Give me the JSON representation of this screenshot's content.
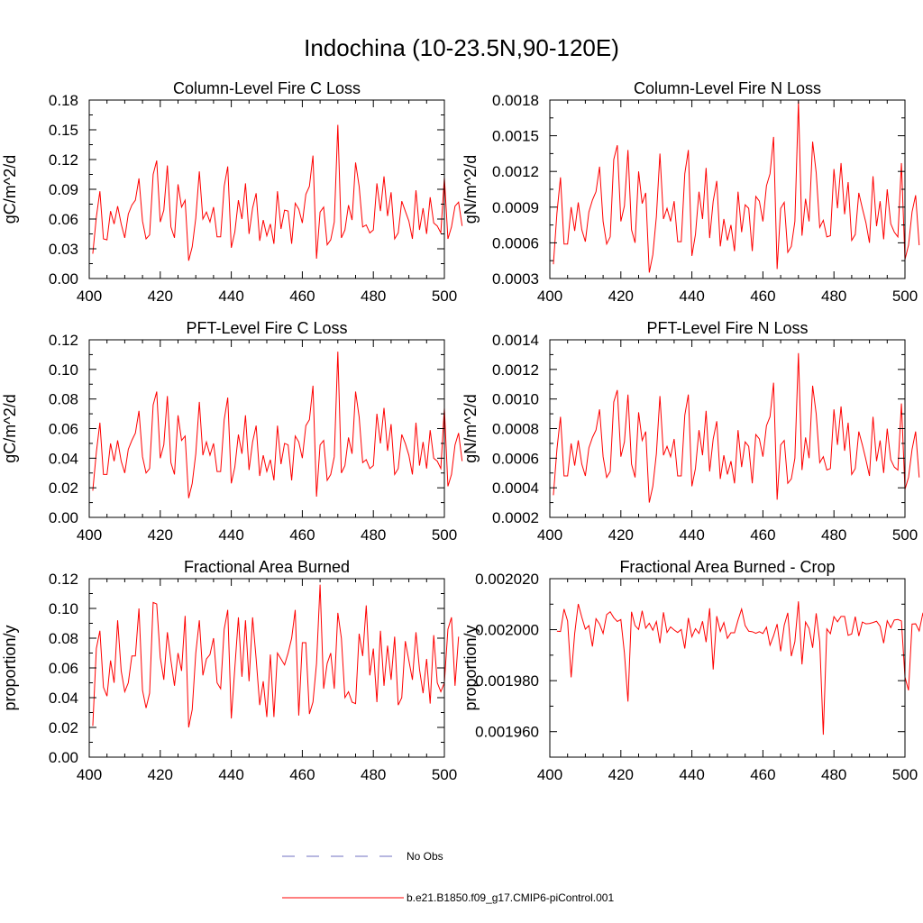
{
  "figure": {
    "title": "Indochina (10-23.5N,90-120E)"
  },
  "legend": {
    "items": [
      {
        "label": "No Obs",
        "color": "#6f6fc0",
        "style": "dashed"
      },
      {
        "label": "b.e21.B1850.f09_g17.CMIP6-piControl.001",
        "color": "#ff0000",
        "style": "solid"
      }
    ]
  },
  "chart_data": [
    {
      "type": "line",
      "title": "Column-Level Fire C Loss",
      "ylabel": "gC/m^2/d",
      "xlabel": "",
      "xlim": [
        400,
        500
      ],
      "ylim": [
        0.0,
        0.18
      ],
      "xticks": [
        400,
        420,
        440,
        460,
        480,
        500
      ],
      "xtick_labels": [
        "400",
        "420",
        "440",
        "460",
        "480",
        "500"
      ],
      "yticks": [
        0.0,
        0.03,
        0.06,
        0.09,
        0.12,
        0.15,
        0.18
      ],
      "ytick_labels": [
        "0.00",
        "0.03",
        "0.06",
        "0.09",
        "0.12",
        "0.15",
        "0.18"
      ],
      "series": [
        {
          "name": "b.e21.B1850.f09_g17.CMIP6-piControl.001",
          "color": "#ff0000",
          "x_start": 401,
          "values": [
            0.025,
            0.062,
            0.088,
            0.04,
            0.039,
            0.068,
            0.055,
            0.073,
            0.055,
            0.041,
            0.065,
            0.074,
            0.079,
            0.101,
            0.058,
            0.04,
            0.044,
            0.105,
            0.119,
            0.057,
            0.069,
            0.114,
            0.052,
            0.041,
            0.095,
            0.072,
            0.079,
            0.018,
            0.032,
            0.061,
            0.108,
            0.06,
            0.067,
            0.057,
            0.072,
            0.042,
            0.042,
            0.093,
            0.113,
            0.031,
            0.047,
            0.079,
            0.06,
            0.096,
            0.045,
            0.071,
            0.086,
            0.038,
            0.059,
            0.043,
            0.055,
            0.035,
            0.088,
            0.05,
            0.069,
            0.068,
            0.035,
            0.076,
            0.07,
            0.056,
            0.085,
            0.093,
            0.124,
            0.02,
            0.067,
            0.072,
            0.034,
            0.039,
            0.057,
            0.155,
            0.041,
            0.049,
            0.074,
            0.059,
            0.117,
            0.093,
            0.052,
            0.054,
            0.046,
            0.049,
            0.096,
            0.068,
            0.103,
            0.063,
            0.087,
            0.04,
            0.046,
            0.078,
            0.068,
            0.058,
            0.04,
            0.089,
            0.049,
            0.071,
            0.045,
            0.082,
            0.056,
            0.053,
            0.046,
            0.102,
            0.04,
            0.052,
            0.073,
            0.077,
            0.053
          ]
        }
      ]
    },
    {
      "type": "line",
      "title": "Column-Level Fire N Loss",
      "ylabel": "gN/m^2/d",
      "xlabel": "",
      "xlim": [
        400,
        500
      ],
      "ylim": [
        0.0003,
        0.0018
      ],
      "xticks": [
        400,
        420,
        440,
        460,
        480,
        500
      ],
      "xtick_labels": [
        "400",
        "420",
        "440",
        "460",
        "480",
        "500"
      ],
      "yticks": [
        0.0003,
        0.0006,
        0.0009,
        0.0012,
        0.0015,
        0.0018
      ],
      "ytick_labels": [
        "0.0003",
        "0.0006",
        "0.0009",
        "0.0012",
        "0.0015",
        "0.0018"
      ],
      "series": [
        {
          "name": "b.e21.B1850.f09_g17.CMIP6-piControl.001",
          "color": "#ff0000",
          "x_start": 401,
          "values": [
            0.00042,
            0.00085,
            0.00115,
            0.00059,
            0.00059,
            0.0009,
            0.0007,
            0.00094,
            0.00071,
            0.00061,
            0.00086,
            0.00096,
            0.00103,
            0.00124,
            0.00078,
            0.00059,
            0.00065,
            0.0013,
            0.00142,
            0.00078,
            0.00091,
            0.00138,
            0.00071,
            0.0006,
            0.0012,
            0.00093,
            0.00102,
            0.00035,
            0.0005,
            0.00082,
            0.00135,
            0.0008,
            0.00089,
            0.00078,
            0.00095,
            0.00061,
            0.00061,
            0.00118,
            0.00138,
            0.00049,
            0.00067,
            0.00103,
            0.0008,
            0.00123,
            0.00064,
            0.00095,
            0.00112,
            0.00057,
            0.0008,
            0.00062,
            0.00075,
            0.00053,
            0.00103,
            0.00069,
            0.00092,
            0.00089,
            0.00053,
            0.00099,
            0.00095,
            0.00078,
            0.00108,
            0.00118,
            0.00149,
            0.00038,
            0.00089,
            0.00094,
            0.00052,
            0.00057,
            0.00078,
            0.00179,
            0.00066,
            0.00097,
            0.00078,
            0.00145,
            0.00119,
            0.00073,
            0.00079,
            0.00065,
            0.00066,
            0.00122,
            0.00089,
            0.00127,
            0.00084,
            0.00111,
            0.00062,
            0.00067,
            0.00102,
            0.00089,
            0.00077,
            0.0006,
            0.00116,
            0.00074,
            0.00095,
            0.00063,
            0.00105,
            0.00076,
            0.00069,
            0.00065,
            0.00127,
            0.00046,
            0.00058,
            0.00086,
            0.001,
            0.00058
          ]
        }
      ]
    },
    {
      "type": "line",
      "title": "PFT-Level Fire C Loss",
      "ylabel": "gC/m^2/d",
      "xlabel": "",
      "xlim": [
        400,
        500
      ],
      "ylim": [
        0.0,
        0.12
      ],
      "xticks": [
        400,
        420,
        440,
        460,
        480,
        500
      ],
      "xtick_labels": [
        "400",
        "420",
        "440",
        "460",
        "480",
        "500"
      ],
      "yticks": [
        0.0,
        0.02,
        0.04,
        0.06,
        0.08,
        0.1,
        0.12
      ],
      "ytick_labels": [
        "0.00",
        "0.02",
        "0.04",
        "0.06",
        "0.08",
        "0.10",
        "0.12"
      ],
      "series": [
        {
          "name": "b.e21.B1850.f09_g17.CMIP6-piControl.001",
          "color": "#ff0000",
          "x_start": 401,
          "values": [
            0.018,
            0.044,
            0.064,
            0.029,
            0.029,
            0.05,
            0.038,
            0.052,
            0.038,
            0.03,
            0.046,
            0.052,
            0.057,
            0.072,
            0.041,
            0.03,
            0.033,
            0.076,
            0.085,
            0.04,
            0.049,
            0.082,
            0.037,
            0.029,
            0.069,
            0.052,
            0.055,
            0.013,
            0.023,
            0.043,
            0.078,
            0.042,
            0.051,
            0.042,
            0.05,
            0.031,
            0.031,
            0.066,
            0.081,
            0.023,
            0.034,
            0.056,
            0.043,
            0.069,
            0.032,
            0.051,
            0.062,
            0.028,
            0.042,
            0.031,
            0.039,
            0.025,
            0.062,
            0.036,
            0.05,
            0.049,
            0.025,
            0.055,
            0.051,
            0.04,
            0.062,
            0.066,
            0.089,
            0.014,
            0.049,
            0.052,
            0.025,
            0.029,
            0.041,
            0.112,
            0.03,
            0.035,
            0.054,
            0.043,
            0.085,
            0.068,
            0.037,
            0.039,
            0.033,
            0.035,
            0.07,
            0.05,
            0.074,
            0.045,
            0.063,
            0.029,
            0.033,
            0.056,
            0.05,
            0.042,
            0.029,
            0.064,
            0.035,
            0.051,
            0.033,
            0.059,
            0.04,
            0.038,
            0.033,
            0.074,
            0.021,
            0.029,
            0.049,
            0.057,
            0.038
          ]
        }
      ]
    },
    {
      "type": "line",
      "title": "PFT-Level Fire N Loss",
      "ylabel": "gN/m^2/d",
      "xlabel": "",
      "xlim": [
        400,
        500
      ],
      "ylim": [
        0.0002,
        0.0014
      ],
      "xticks": [
        400,
        420,
        440,
        460,
        480,
        500
      ],
      "xtick_labels": [
        "400",
        "420",
        "440",
        "460",
        "480",
        "500"
      ],
      "yticks": [
        0.0002,
        0.0004,
        0.0006,
        0.0008,
        0.001,
        0.0012,
        0.0014
      ],
      "ytick_labels": [
        "0.0002",
        "0.0004",
        "0.0006",
        "0.0008",
        "0.0010",
        "0.0012",
        "0.0014"
      ],
      "series": [
        {
          "name": "b.e21.B1850.f09_g17.CMIP6-piControl.001",
          "color": "#ff0000",
          "x_start": 401,
          "values": [
            0.00035,
            0.00066,
            0.00088,
            0.00048,
            0.00048,
            0.0007,
            0.00055,
            0.00072,
            0.00056,
            0.00048,
            0.00067,
            0.00074,
            0.00079,
            0.00093,
            0.00061,
            0.00047,
            0.00051,
            0.00098,
            0.00106,
            0.00061,
            0.00071,
            0.00103,
            0.00056,
            0.00047,
            0.00091,
            0.00072,
            0.00078,
            0.0003,
            0.00041,
            0.00063,
            0.00102,
            0.00062,
            0.00068,
            0.00061,
            0.00073,
            0.00048,
            0.00048,
            0.00089,
            0.00103,
            0.00041,
            0.00053,
            0.00079,
            0.00062,
            0.00092,
            0.00051,
            0.00073,
            0.00085,
            0.00046,
            0.00062,
            0.00049,
            0.00058,
            0.00043,
            0.00079,
            0.00054,
            0.00071,
            0.00068,
            0.00043,
            0.00076,
            0.00073,
            0.00061,
            0.00082,
            0.00088,
            0.00111,
            0.00032,
            0.00069,
            0.00072,
            0.00043,
            0.00046,
            0.0006,
            0.00131,
            0.00052,
            0.00074,
            0.0006,
            0.00109,
            0.0009,
            0.00057,
            0.00061,
            0.00052,
            0.00053,
            0.00093,
            0.00069,
            0.00095,
            0.00065,
            0.00084,
            0.00049,
            0.00053,
            0.00078,
            0.00069,
            0.00059,
            0.00048,
            0.00088,
            0.00058,
            0.00072,
            0.0005,
            0.0008,
            0.00059,
            0.00054,
            0.00052,
            0.00097,
            0.00039,
            0.00047,
            0.00066,
            0.00078,
            0.00047
          ]
        }
      ]
    },
    {
      "type": "line",
      "title": "Fractional Area Burned",
      "ylabel": "proportion/y",
      "xlabel": "",
      "xlim": [
        400,
        500
      ],
      "ylim": [
        0.0,
        0.12
      ],
      "xticks": [
        400,
        420,
        440,
        460,
        480,
        500
      ],
      "xtick_labels": [
        "400",
        "420",
        "440",
        "460",
        "480",
        "500"
      ],
      "yticks": [
        0.0,
        0.02,
        0.04,
        0.06,
        0.08,
        0.1,
        0.12
      ],
      "ytick_labels": [
        "0.00",
        "0.02",
        "0.04",
        "0.06",
        "0.08",
        "0.10",
        "0.12"
      ],
      "series": [
        {
          "name": "b.e21.B1850.f09_g17.CMIP6-piControl.001",
          "color": "#ff0000",
          "x_start": 401,
          "values": [
            0.021,
            0.073,
            0.085,
            0.047,
            0.041,
            0.065,
            0.05,
            0.092,
            0.058,
            0.044,
            0.05,
            0.068,
            0.068,
            0.1,
            0.045,
            0.033,
            0.043,
            0.104,
            0.103,
            0.067,
            0.052,
            0.084,
            0.065,
            0.048,
            0.07,
            0.058,
            0.095,
            0.02,
            0.032,
            0.07,
            0.092,
            0.055,
            0.066,
            0.069,
            0.08,
            0.05,
            0.046,
            0.086,
            0.099,
            0.026,
            0.06,
            0.094,
            0.054,
            0.092,
            0.051,
            0.094,
            0.066,
            0.035,
            0.051,
            0.027,
            0.069,
            0.027,
            0.07,
            0.066,
            0.062,
            0.07,
            0.08,
            0.099,
            0.028,
            0.077,
            0.077,
            0.029,
            0.037,
            0.063,
            0.116,
            0.046,
            0.063,
            0.07,
            0.046,
            0.097,
            0.08,
            0.04,
            0.044,
            0.037,
            0.036,
            0.083,
            0.068,
            0.102,
            0.055,
            0.073,
            0.037,
            0.085,
            0.048,
            0.075,
            0.052,
            0.081,
            0.035,
            0.04,
            0.078,
            0.065,
            0.052,
            0.084,
            0.059,
            0.043,
            0.066,
            0.036,
            0.082,
            0.05,
            0.044,
            0.05,
            0.086,
            0.094,
            0.048,
            0.081
          ]
        }
      ]
    },
    {
      "type": "line",
      "title": "Fractional Area Burned - Crop",
      "ylabel": "proportion/y",
      "xlabel": "",
      "xlim": [
        400,
        500
      ],
      "ylim": [
        0.00195,
        0.00202
      ],
      "xticks": [
        400,
        420,
        440,
        460,
        480,
        500
      ],
      "xtick_labels": [
        "400",
        "420",
        "440",
        "460",
        "480",
        "500"
      ],
      "yticks": [
        0.00196,
        0.00198,
        0.002,
        0.00202
      ],
      "ytick_labels": [
        "0.001960",
        "0.001980",
        "0.002000",
        "0.002020"
      ],
      "series": [
        {
          "name": "b.e21.B1850.f09_g17.CMIP6-piControl.001",
          "color": "#ff0000",
          "x_start": 402,
          "values": [
            0.0019994,
            0.0019993,
            0.0020081,
            0.0020034,
            0.0019813,
            0.0019985,
            0.0020101,
            0.0020049,
            0.0020002,
            0.0020016,
            0.0019934,
            0.0020043,
            0.0020022,
            0.0019985,
            0.0020059,
            0.002007,
            0.0020047,
            0.0020032,
            0.002004,
            0.0019908,
            0.0019718,
            0.002007,
            0.0020016,
            0.0020001,
            0.0020074,
            0.0020006,
            0.0020025,
            0.0019998,
            0.0020032,
            0.0019947,
            0.0020068,
            0.0019989,
            0.0020011,
            0.0019999,
            0.0019989,
            0.0020001,
            0.0019926,
            0.0020046,
            0.0019972,
            0.0020004,
            0.0019985,
            0.0020033,
            0.0019951,
            0.0020084,
            0.0019844,
            0.0020053,
            0.0019993,
            0.0020028,
            0.0019966,
            0.0019988,
            0.0019988,
            0.0020038,
            0.0020081,
            0.0020016,
            0.0019994,
            0.0019992,
            0.0019986,
            0.0019992,
            0.0019985,
            0.002001,
            0.0019939,
            0.0019976,
            0.0020022,
            0.0019915,
            0.0020017,
            0.0020066,
            0.0019896,
            0.0019953,
            0.0020111,
            0.0019864,
            0.002003,
            0.0020005,
            0.0019929,
            0.0020064,
            0.0019952,
            0.0019588,
            0.0020003,
            0.0019984,
            0.0020051,
            0.0020031,
            0.0020052,
            0.0020052,
            0.0019978,
            0.0019983,
            0.0020051,
            0.0019975,
            0.002003,
            0.0020023,
            0.0020024,
            0.0020028,
            0.0020033,
            0.0020013,
            0.0019947,
            0.0020035,
            0.0020008,
            0.0020038,
            0.002004,
            0.0020034,
            0.0019814,
            0.0019762,
            0.0020022,
            0.0020023,
            0.0019995,
            0.0020062,
            0.0020024,
            0.0020062,
            0.0019961,
            0.0020031
          ]
        }
      ]
    }
  ]
}
